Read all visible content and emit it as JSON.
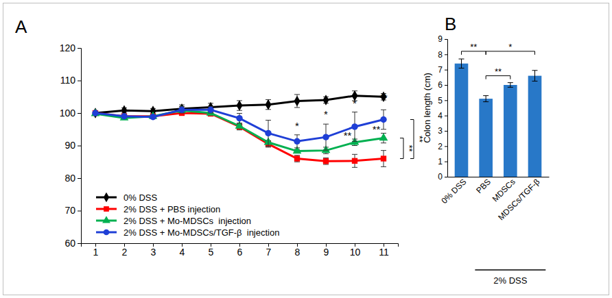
{
  "chart_data": [
    {
      "type": "line",
      "title": "A",
      "x": [
        1,
        2,
        3,
        4,
        5,
        6,
        7,
        8,
        9,
        10,
        11
      ],
      "xlim": [
        0.5,
        11.5
      ],
      "xticks": [
        1,
        2,
        3,
        4,
        5,
        6,
        7,
        8,
        9,
        10,
        11
      ],
      "ylim": [
        60,
        120
      ],
      "yticks": [
        60,
        70,
        80,
        90,
        100,
        110,
        120
      ],
      "grid": false,
      "legend": "lower left",
      "series": [
        {
          "name": "0% DSS",
          "color": "#000000",
          "marker": "diamond",
          "values": [
            100,
            100.8,
            100.6,
            101.3,
            101.8,
            102.3,
            102.6,
            103.7,
            104,
            105.3,
            105
          ],
          "errors": [
            0.3,
            0.8,
            0.8,
            1.2,
            1.2,
            1.5,
            1.5,
            2,
            1,
            1.5,
            1
          ]
        },
        {
          "name": "2% DSS + PBS injection",
          "color": "#ff0000",
          "marker": "square",
          "values": [
            100,
            99,
            99,
            100,
            99.8,
            95.8,
            90.5,
            86,
            85.2,
            85.3,
            86
          ],
          "errors": [
            0.3,
            0.5,
            0.5,
            0.5,
            0.5,
            1,
            1,
            1,
            1,
            2,
            2.5
          ]
        },
        {
          "name": "2% DSS + Mo-MDSCs  injection",
          "color": "#00b050",
          "marker": "triangle",
          "values": [
            99.8,
            98.5,
            99,
            100.8,
            100,
            96,
            91,
            88.3,
            88.5,
            91,
            92.3
          ],
          "errors": [
            0.5,
            0.5,
            0.5,
            0.5,
            0.5,
            0.5,
            0.5,
            0.5,
            1,
            1,
            1.5
          ]
        },
        {
          "name": "2% DSS + Mo-MDSCs/TGF-β  injection",
          "color": "#1f3fd6",
          "marker": "circle",
          "values": [
            100,
            99,
            98.8,
            101,
            101,
            98.4,
            93.8,
            91.3,
            92.6,
            95.8,
            98
          ],
          "errors": [
            0.3,
            0.5,
            0.5,
            1,
            1,
            1.5,
            4,
            2,
            4,
            4.5,
            3
          ]
        }
      ],
      "annotations": [
        {
          "text": "*",
          "x": 8,
          "y": 95
        },
        {
          "text": "*",
          "x": 9,
          "y": 98.5
        },
        {
          "text": "*",
          "x": 10,
          "y": 102
        },
        {
          "text": "**",
          "x": 11,
          "y": 103.5
        },
        {
          "text": "**",
          "x": 9.75,
          "y": 92
        },
        {
          "text": "**",
          "x": 10.75,
          "y": 94
        }
      ],
      "brackets": [
        {
          "label": "**",
          "from": 92.3,
          "to": 86
        },
        {
          "label": "**",
          "from": 98,
          "to": 86
        }
      ]
    },
    {
      "type": "bar",
      "title": "B",
      "categories": [
        "0% DSS",
        "PBS",
        "MDSCs",
        "MDSCs/TGF-β"
      ],
      "values": [
        7.4,
        5.1,
        6.0,
        6.6
      ],
      "errors": [
        0.3,
        0.2,
        0.15,
        0.35
      ],
      "color": "#2878c8",
      "ylim": [
        0,
        9
      ],
      "yticks": [
        0,
        1,
        2,
        3,
        4,
        5,
        6,
        7,
        8,
        9
      ],
      "y_label": "Colon length (cm)",
      "brackets": [
        {
          "label": "**",
          "from": 0,
          "to": 1,
          "y": 8.2
        },
        {
          "label": "*",
          "from": 1,
          "to": 3,
          "y": 8.2
        },
        {
          "label": "**",
          "from": 1,
          "to": 2,
          "y": 6.6
        }
      ],
      "group_label": {
        "text": "2% DSS",
        "from": 1,
        "to": 3
      }
    }
  ]
}
